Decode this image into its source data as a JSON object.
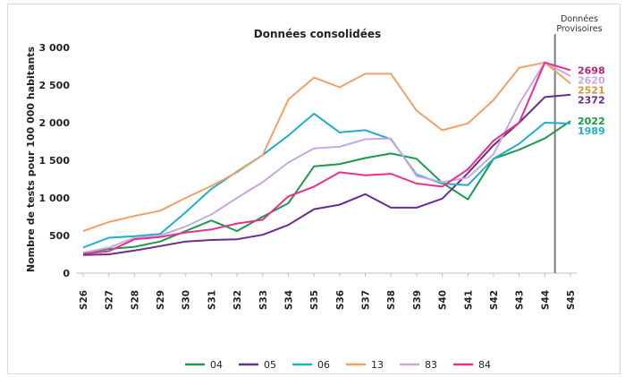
{
  "chart_data": {
    "type": "line",
    "title": "Données consolidées",
    "annotation": "Données Provisoires",
    "xlabel": "",
    "ylabel": "Nombre de tests pour 100 000 habitants",
    "ylim": [
      0,
      3000
    ],
    "yticks": [
      0,
      500,
      1000,
      1500,
      2000,
      2500,
      3000
    ],
    "ytick_labels": [
      "0",
      "500",
      "1 000",
      "1 500",
      "2 000",
      "2 500",
      "3 000"
    ],
    "grid": false,
    "legend_position": "bottom",
    "categories": [
      "S26",
      "S27",
      "S28",
      "S29",
      "S30",
      "S31",
      "S32",
      "S33",
      "S34",
      "S35",
      "S36",
      "S37",
      "S38",
      "S39",
      "S40",
      "S41",
      "S42",
      "S43",
      "S44",
      "S45"
    ],
    "series": [
      {
        "name": "04",
        "color": "#1a9a4a",
        "values": [
          270,
          320,
          350,
          420,
          560,
          700,
          560,
          750,
          930,
          1420,
          1450,
          1530,
          1590,
          1520,
          1200,
          980,
          1520,
          1640,
          1790,
          2022
        ]
      },
      {
        "name": "05",
        "color": "#6a2b8a",
        "values": [
          240,
          250,
          300,
          360,
          420,
          440,
          450,
          510,
          640,
          850,
          910,
          1050,
          870,
          870,
          990,
          1330,
          1700,
          2000,
          2340,
          2372
        ]
      },
      {
        "name": "06",
        "color": "#1eb0c8",
        "values": [
          340,
          470,
          490,
          520,
          810,
          1120,
          1350,
          1570,
          1830,
          2120,
          1870,
          1900,
          1780,
          1310,
          1190,
          1170,
          1520,
          1720,
          2000,
          1989
        ]
      },
      {
        "name": "13",
        "color": "#f2a064",
        "values": [
          560,
          680,
          760,
          830,
          1000,
          1160,
          1340,
          1570,
          2310,
          2600,
          2470,
          2650,
          2650,
          2160,
          1900,
          1990,
          2300,
          2730,
          2800,
          2521
        ]
      },
      {
        "name": "83",
        "color": "#c8a8e4",
        "values": [
          270,
          340,
          470,
          500,
          620,
          780,
          1000,
          1210,
          1470,
          1660,
          1680,
          1780,
          1790,
          1290,
          1210,
          1270,
          1580,
          2250,
          2800,
          2620
        ]
      },
      {
        "name": "84",
        "color": "#e8318c",
        "values": [
          260,
          290,
          450,
          480,
          540,
          580,
          660,
          710,
          1020,
          1150,
          1340,
          1300,
          1320,
          1190,
          1150,
          1380,
          1760,
          2000,
          2800,
          2698
        ]
      }
    ],
    "end_labels": [
      {
        "text": "2698",
        "color": "#b0247a",
        "value": 2698
      },
      {
        "text": "2620",
        "color": "#c8a8e4",
        "value": 2620
      },
      {
        "text": "2521",
        "color": "#d9963a",
        "value": 2521
      },
      {
        "text": "2372",
        "color": "#6a2b8a",
        "value": 2372
      },
      {
        "text": "2022",
        "color": "#1a9a4a",
        "value": 2022
      },
      {
        "text": "1989",
        "color": "#1eb0c8",
        "value": 1989
      }
    ]
  }
}
